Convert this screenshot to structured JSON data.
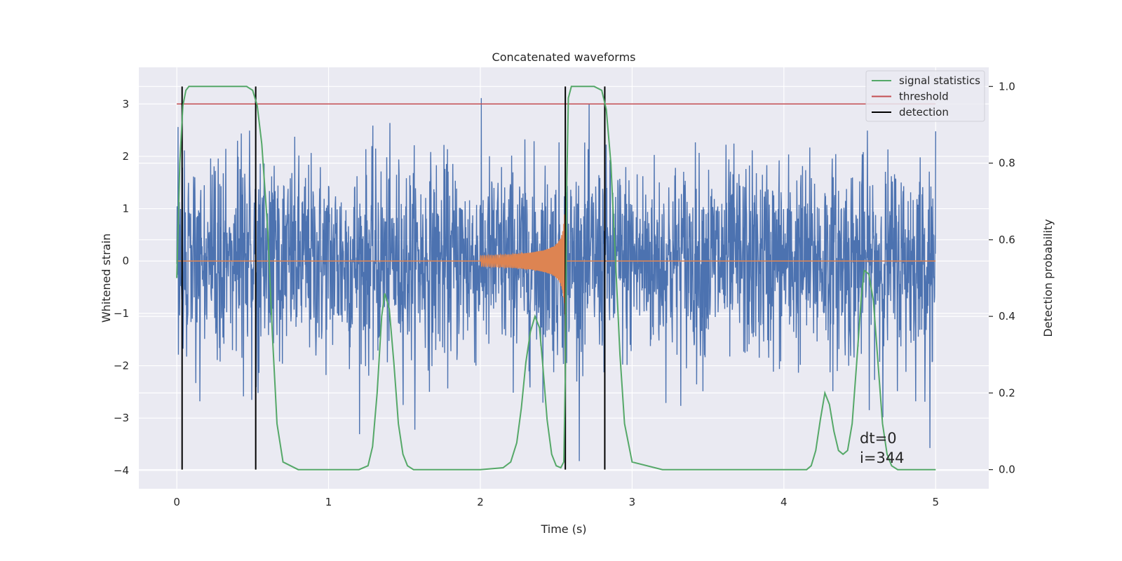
{
  "chart_data": {
    "type": "line",
    "title": "Concatenated waveforms",
    "xlabel": "Time (s)",
    "ylabel_left": "Whitened strain",
    "ylabel_right": "Detection probability",
    "xlim": [
      -0.25,
      5.35
    ],
    "ylim_left": [
      -4.35,
      3.7
    ],
    "ylim_right": [
      -0.05,
      1.05
    ],
    "xticks": [
      0,
      1,
      2,
      3,
      4,
      5
    ],
    "yticks_left": [
      3,
      2,
      1,
      0,
      -1,
      -2,
      -3,
      -4
    ],
    "ytick_labels_left": [
      "3",
      "2",
      "1",
      "0",
      "−1",
      "−2",
      "−3",
      "−4"
    ],
    "yticks_right": [
      1.0,
      0.8,
      0.6,
      0.4,
      0.2,
      0.0
    ],
    "ytick_labels_right": [
      "1.0",
      "0.8",
      "0.6",
      "0.4",
      "0.2",
      "0.0"
    ],
    "grid": true,
    "legend_position": "top-right",
    "colors": {
      "noise": "#4c72b0",
      "chirp": "#dd8452",
      "signal_statistics": "#55a868",
      "threshold": "#c44e52",
      "detection": "#000000",
      "background": "#eaeaf2",
      "grid": "#ffffff"
    },
    "legend": [
      {
        "label": "signal statistics",
        "color": "#55a868"
      },
      {
        "label": "threshold",
        "color": "#c44e52"
      },
      {
        "label": "detection",
        "color": "#000000"
      }
    ],
    "noise_series": {
      "x_range": [
        0,
        5.0
      ],
      "y_min": -4.0,
      "y_max": 3.35,
      "typical_abs": 1.5
    },
    "chirp_series": {
      "x_start": 2.0,
      "x_end": 2.56,
      "max_amplitude": 1.05
    },
    "threshold_series": {
      "x": [
        0,
        5.0
      ],
      "y": [
        3.0,
        3.0
      ]
    },
    "signal_statistics": {
      "x": [
        0,
        0.02,
        0.04,
        0.06,
        0.08,
        0.1,
        0.15,
        0.2,
        0.3,
        0.4,
        0.46,
        0.5,
        0.53,
        0.56,
        0.6,
        0.63,
        0.66,
        0.7,
        0.8,
        1.0,
        1.2,
        1.26,
        1.29,
        1.32,
        1.35,
        1.37,
        1.4,
        1.43,
        1.46,
        1.49,
        1.52,
        1.56,
        1.6,
        1.8,
        2.0,
        2.15,
        2.2,
        2.24,
        2.27,
        2.3,
        2.33,
        2.36,
        2.39,
        2.41,
        2.44,
        2.47,
        2.5,
        2.53,
        2.55,
        2.56,
        2.57,
        2.58,
        2.6,
        2.65,
        2.7,
        2.75,
        2.8,
        2.83,
        2.86,
        2.89,
        2.92,
        2.95,
        3.0,
        3.2,
        3.5,
        4.0,
        4.15,
        4.18,
        4.21,
        4.24,
        4.27,
        4.3,
        4.33,
        4.36,
        4.39,
        4.42,
        4.45,
        4.48,
        4.51,
        4.53,
        4.56,
        4.59,
        4.62,
        4.65,
        4.68,
        4.71,
        4.75,
        4.8,
        5.0
      ],
      "y": [
        0.5,
        0.8,
        0.95,
        0.99,
        1.0,
        1.0,
        1.0,
        1.0,
        1.0,
        1.0,
        1.0,
        0.99,
        0.95,
        0.85,
        0.62,
        0.35,
        0.12,
        0.02,
        0.0,
        0.0,
        0.0,
        0.01,
        0.06,
        0.2,
        0.4,
        0.46,
        0.42,
        0.28,
        0.12,
        0.04,
        0.01,
        0.0,
        0.0,
        0.0,
        0.0,
        0.005,
        0.02,
        0.07,
        0.16,
        0.28,
        0.36,
        0.4,
        0.37,
        0.28,
        0.13,
        0.04,
        0.01,
        0.005,
        0.02,
        0.25,
        0.75,
        0.97,
        1.0,
        1.0,
        1.0,
        1.0,
        0.99,
        0.94,
        0.8,
        0.55,
        0.3,
        0.12,
        0.02,
        0.0,
        0.0,
        0.0,
        0.0,
        0.01,
        0.05,
        0.13,
        0.2,
        0.17,
        0.1,
        0.05,
        0.04,
        0.05,
        0.12,
        0.28,
        0.45,
        0.52,
        0.51,
        0.44,
        0.28,
        0.12,
        0.04,
        0.01,
        0.0,
        0.0,
        0.0
      ]
    },
    "detections_x": [
      0.035,
      0.52,
      2.56,
      2.82
    ],
    "annotations": [
      "dt=0",
      "i=344"
    ]
  }
}
